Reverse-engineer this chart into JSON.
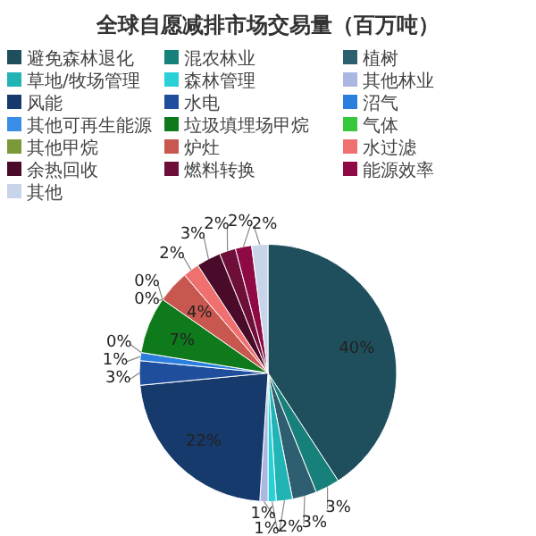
{
  "chart_data": {
    "type": "pie",
    "title": "全球自愿减排市场交易量（百万吨）",
    "legend": "top",
    "categories": [
      "避免森林退化",
      "混农林业",
      "植树",
      "草地/牧场管理",
      "森林管理",
      "其他林业",
      "风能",
      "水电",
      "沼气",
      "其他可再生能源",
      "垃圾填埋场甲烷",
      "气体",
      "其他甲烷",
      "炉灶",
      "水过滤",
      "余热回收",
      "燃料转换",
      "能源效率",
      "其他"
    ],
    "values": [
      40,
      3,
      3,
      2,
      1,
      1,
      22,
      3,
      1,
      0,
      7,
      0,
      0,
      4,
      2,
      3,
      2,
      2,
      2
    ],
    "value_labels": [
      "40%",
      "3%",
      "3%",
      "2%",
      "1%",
      "1%",
      "22%",
      "3%",
      "1%",
      "0%",
      "7%",
      "0%",
      "0%",
      "4%",
      "2%",
      "3%",
      "2%",
      "2%",
      "2%"
    ],
    "colors": [
      "#1f4f5c",
      "#17807a",
      "#2d5f70",
      "#22b3b5",
      "#2ad0d8",
      "#a9b7e2",
      "#163a6c",
      "#1f4f9c",
      "#2a7fde",
      "#3a8ee8",
      "#0f7a1c",
      "#36c83a",
      "#7a9a3a",
      "#c8574f",
      "#f07070",
      "#4a0a2a",
      "#6e0f3a",
      "#8e0a45",
      "#c8d4ea"
    ]
  }
}
